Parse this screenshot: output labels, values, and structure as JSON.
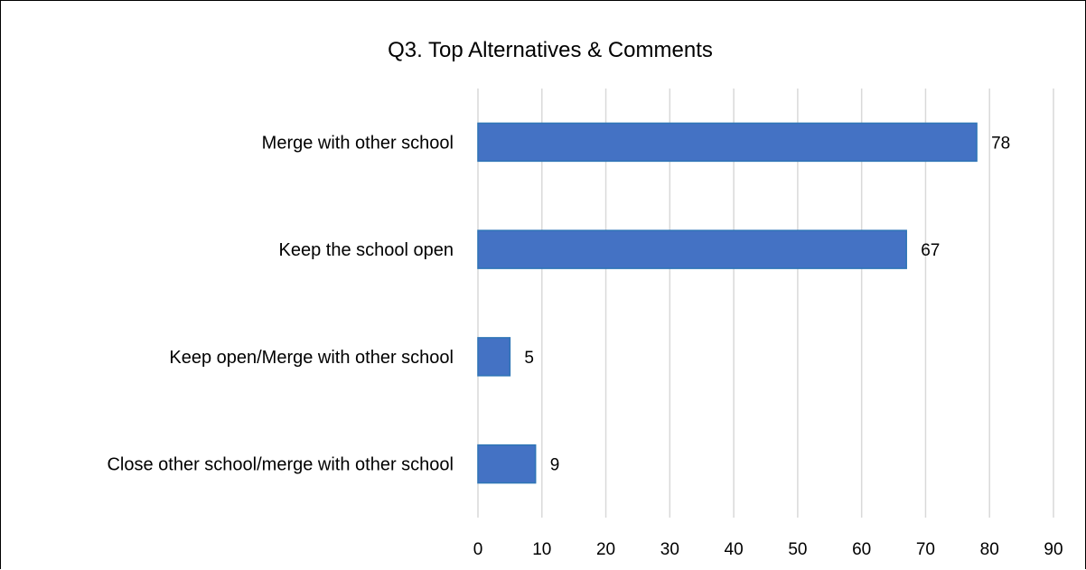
{
  "chart_data": {
    "type": "bar",
    "orientation": "horizontal",
    "title": "Q3. Top Alternatives & Comments",
    "categories": [
      "Merge with other school",
      "Keep the school open",
      "Keep open/Merge with other school",
      "Close other school/merge with other school"
    ],
    "values": [
      78,
      67,
      5,
      9
    ],
    "xlim": [
      0,
      90
    ],
    "x_ticks": [
      0,
      10,
      20,
      30,
      40,
      50,
      60,
      70,
      80,
      90
    ],
    "grid": true,
    "legend": "none",
    "data_labels": true,
    "colors": {
      "bar_fill": "#4472C4",
      "bar_stroke": "#2E75B6",
      "grid": "#D9D9D9",
      "border": "#000000"
    }
  }
}
